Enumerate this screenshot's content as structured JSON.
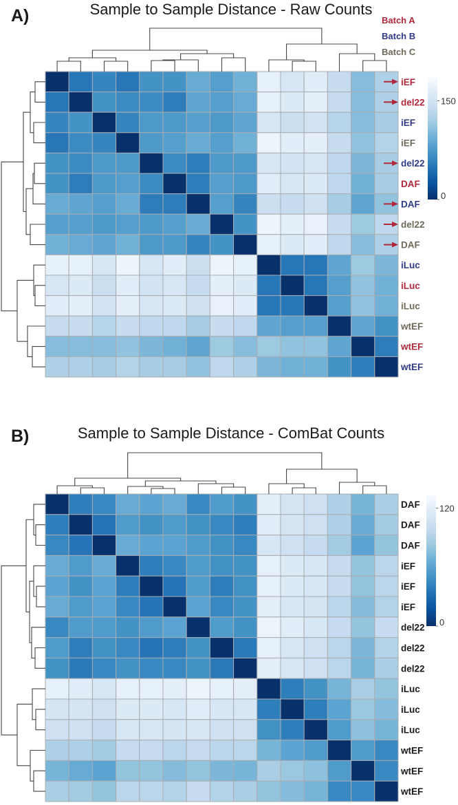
{
  "batch_colors": {
    "A": "#b0283a",
    "B": "#2e3a87",
    "C": "#6e6a5a",
    "none": "#1a1a1a"
  },
  "arrow_color": "#b0283a",
  "chart_data": [
    {
      "type": "heatmap",
      "panel_label": "A)",
      "title": "Sample to Sample Distance - Raw Counts",
      "colormap": "Blues (reversed)",
      "colorbar": {
        "min": 0,
        "max": 185,
        "ticks": [
          "0",
          "150"
        ]
      },
      "legend": [
        {
          "text": "Batch A",
          "batch": "A"
        },
        {
          "text": "Batch B",
          "batch": "B"
        },
        {
          "text": "Batch C",
          "batch": "C"
        }
      ],
      "legend_placement": "top-right",
      "row_labels": [
        {
          "text": "iEF",
          "batch": "A",
          "arrow": true
        },
        {
          "text": "del22",
          "batch": "A",
          "arrow": true
        },
        {
          "text": "iEF",
          "batch": "B",
          "arrow": false
        },
        {
          "text": "iEF",
          "batch": "C",
          "arrow": false
        },
        {
          "text": "del22",
          "batch": "B",
          "arrow": true
        },
        {
          "text": "DAF",
          "batch": "A",
          "arrow": false
        },
        {
          "text": "DAF",
          "batch": "B",
          "arrow": true
        },
        {
          "text": "del22",
          "batch": "C",
          "arrow": true
        },
        {
          "text": "DAF",
          "batch": "C",
          "arrow": true
        },
        {
          "text": "iLuc",
          "batch": "B",
          "arrow": false
        },
        {
          "text": "iLuc",
          "batch": "A",
          "arrow": false
        },
        {
          "text": "iLuc",
          "batch": "C",
          "arrow": false
        },
        {
          "text": "wtEF",
          "batch": "C",
          "arrow": false
        },
        {
          "text": "wtEF",
          "batch": "A",
          "arrow": false
        },
        {
          "text": "wtEF",
          "batch": "B",
          "arrow": false
        }
      ],
      "values": [
        [
          0,
          50,
          60,
          50,
          70,
          70,
          90,
          80,
          95,
          170,
          155,
          165,
          140,
          105,
          125
        ],
        [
          50,
          0,
          70,
          65,
          65,
          55,
          85,
          80,
          90,
          170,
          160,
          168,
          140,
          105,
          125
        ],
        [
          60,
          70,
          0,
          60,
          75,
          75,
          80,
          75,
          85,
          155,
          145,
          150,
          130,
          105,
          120
        ],
        [
          50,
          65,
          60,
          0,
          75,
          80,
          90,
          80,
          95,
          175,
          165,
          168,
          140,
          110,
          128
        ],
        [
          70,
          65,
          75,
          75,
          0,
          65,
          55,
          75,
          75,
          155,
          150,
          155,
          135,
          100,
          120
        ],
        [
          70,
          55,
          75,
          80,
          65,
          0,
          55,
          80,
          75,
          165,
          155,
          160,
          135,
          95,
          120
        ],
        [
          90,
          85,
          80,
          90,
          55,
          55,
          0,
          80,
          60,
          145,
          140,
          148,
          120,
          85,
          110
        ],
        [
          80,
          80,
          75,
          80,
          75,
          80,
          90,
          0,
          70,
          175,
          168,
          172,
          140,
          115,
          135
        ],
        [
          95,
          90,
          85,
          95,
          75,
          75,
          60,
          70,
          0,
          170,
          160,
          165,
          135,
          105,
          125
        ],
        [
          170,
          170,
          155,
          175,
          155,
          165,
          145,
          175,
          170,
          0,
          50,
          50,
          85,
          115,
          100
        ],
        [
          155,
          160,
          145,
          165,
          150,
          155,
          140,
          168,
          160,
          50,
          0,
          50,
          80,
          110,
          95
        ],
        [
          165,
          168,
          150,
          168,
          155,
          160,
          148,
          172,
          165,
          50,
          50,
          0,
          80,
          110,
          95
        ],
        [
          140,
          140,
          130,
          140,
          135,
          135,
          120,
          140,
          135,
          85,
          80,
          80,
          0,
          85,
          70
        ],
        [
          105,
          105,
          105,
          110,
          100,
          95,
          85,
          115,
          105,
          115,
          110,
          110,
          85,
          0,
          55
        ],
        [
          125,
          125,
          120,
          128,
          120,
          120,
          110,
          135,
          125,
          100,
          95,
          95,
          70,
          55,
          0
        ]
      ]
    },
    {
      "type": "heatmap",
      "panel_label": "B)",
      "title": "Sample to Sample Distance - ComBat Counts",
      "colormap": "Blues (reversed)",
      "colorbar": {
        "min": 0,
        "max": 133,
        "ticks": [
          "0",
          "120"
        ]
      },
      "legend": [],
      "row_labels": [
        {
          "text": "DAF",
          "batch": "none",
          "arrow": false
        },
        {
          "text": "DAF",
          "batch": "none",
          "arrow": false
        },
        {
          "text": "DAF",
          "batch": "none",
          "arrow": false
        },
        {
          "text": "iEF",
          "batch": "none",
          "arrow": false
        },
        {
          "text": "iEF",
          "batch": "none",
          "arrow": false
        },
        {
          "text": "iEF",
          "batch": "none",
          "arrow": false
        },
        {
          "text": "del22",
          "batch": "none",
          "arrow": false
        },
        {
          "text": "del22",
          "batch": "none",
          "arrow": false
        },
        {
          "text": "del22",
          "batch": "none",
          "arrow": false
        },
        {
          "text": "iLuc",
          "batch": "none",
          "arrow": false
        },
        {
          "text": "iLuc",
          "batch": "none",
          "arrow": false
        },
        {
          "text": "iLuc",
          "batch": "none",
          "arrow": false
        },
        {
          "text": "wtEF",
          "batch": "none",
          "arrow": false
        },
        {
          "text": "wtEF",
          "batch": "none",
          "arrow": false
        },
        {
          "text": "wtEF",
          "batch": "none",
          "arrow": false
        }
      ],
      "values": [
        [
          0,
          40,
          45,
          65,
          60,
          65,
          45,
          55,
          50,
          120,
          110,
          105,
          90,
          70,
          88
        ],
        [
          40,
          0,
          35,
          55,
          50,
          55,
          50,
          45,
          40,
          118,
          110,
          105,
          90,
          65,
          85
        ],
        [
          45,
          35,
          0,
          65,
          60,
          60,
          55,
          50,
          45,
          112,
          105,
          100,
          85,
          60,
          80
        ],
        [
          65,
          55,
          65,
          0,
          40,
          45,
          55,
          50,
          50,
          122,
          115,
          112,
          100,
          80,
          95
        ],
        [
          60,
          50,
          60,
          40,
          0,
          35,
          55,
          40,
          50,
          122,
          115,
          112,
          100,
          80,
          95
        ],
        [
          65,
          55,
          60,
          45,
          35,
          0,
          60,
          45,
          50,
          120,
          112,
          110,
          95,
          75,
          92
        ],
        [
          45,
          55,
          55,
          50,
          55,
          60,
          0,
          55,
          50,
          125,
          118,
          112,
          100,
          80,
          100
        ],
        [
          55,
          40,
          50,
          45,
          35,
          40,
          50,
          0,
          38,
          122,
          112,
          105,
          95,
          72,
          92
        ],
        [
          50,
          38,
          45,
          50,
          45,
          45,
          50,
          38,
          0,
          120,
          112,
          105,
          95,
          70,
          88
        ],
        [
          122,
          118,
          112,
          122,
          122,
          120,
          125,
          122,
          120,
          0,
          40,
          50,
          70,
          88,
          80
        ],
        [
          110,
          110,
          105,
          115,
          115,
          112,
          118,
          112,
          112,
          40,
          0,
          40,
          60,
          82,
          75
        ],
        [
          105,
          105,
          100,
          112,
          112,
          110,
          112,
          105,
          105,
          50,
          40,
          0,
          55,
          78,
          70
        ],
        [
          90,
          90,
          85,
          100,
          100,
          95,
          100,
          95,
          95,
          70,
          60,
          55,
          0,
          55,
          45
        ],
        [
          70,
          65,
          60,
          80,
          80,
          75,
          80,
          72,
          70,
          88,
          82,
          78,
          55,
          0,
          45
        ],
        [
          88,
          85,
          80,
          95,
          95,
          92,
          100,
          92,
          88,
          80,
          75,
          70,
          45,
          45,
          0
        ]
      ]
    }
  ]
}
